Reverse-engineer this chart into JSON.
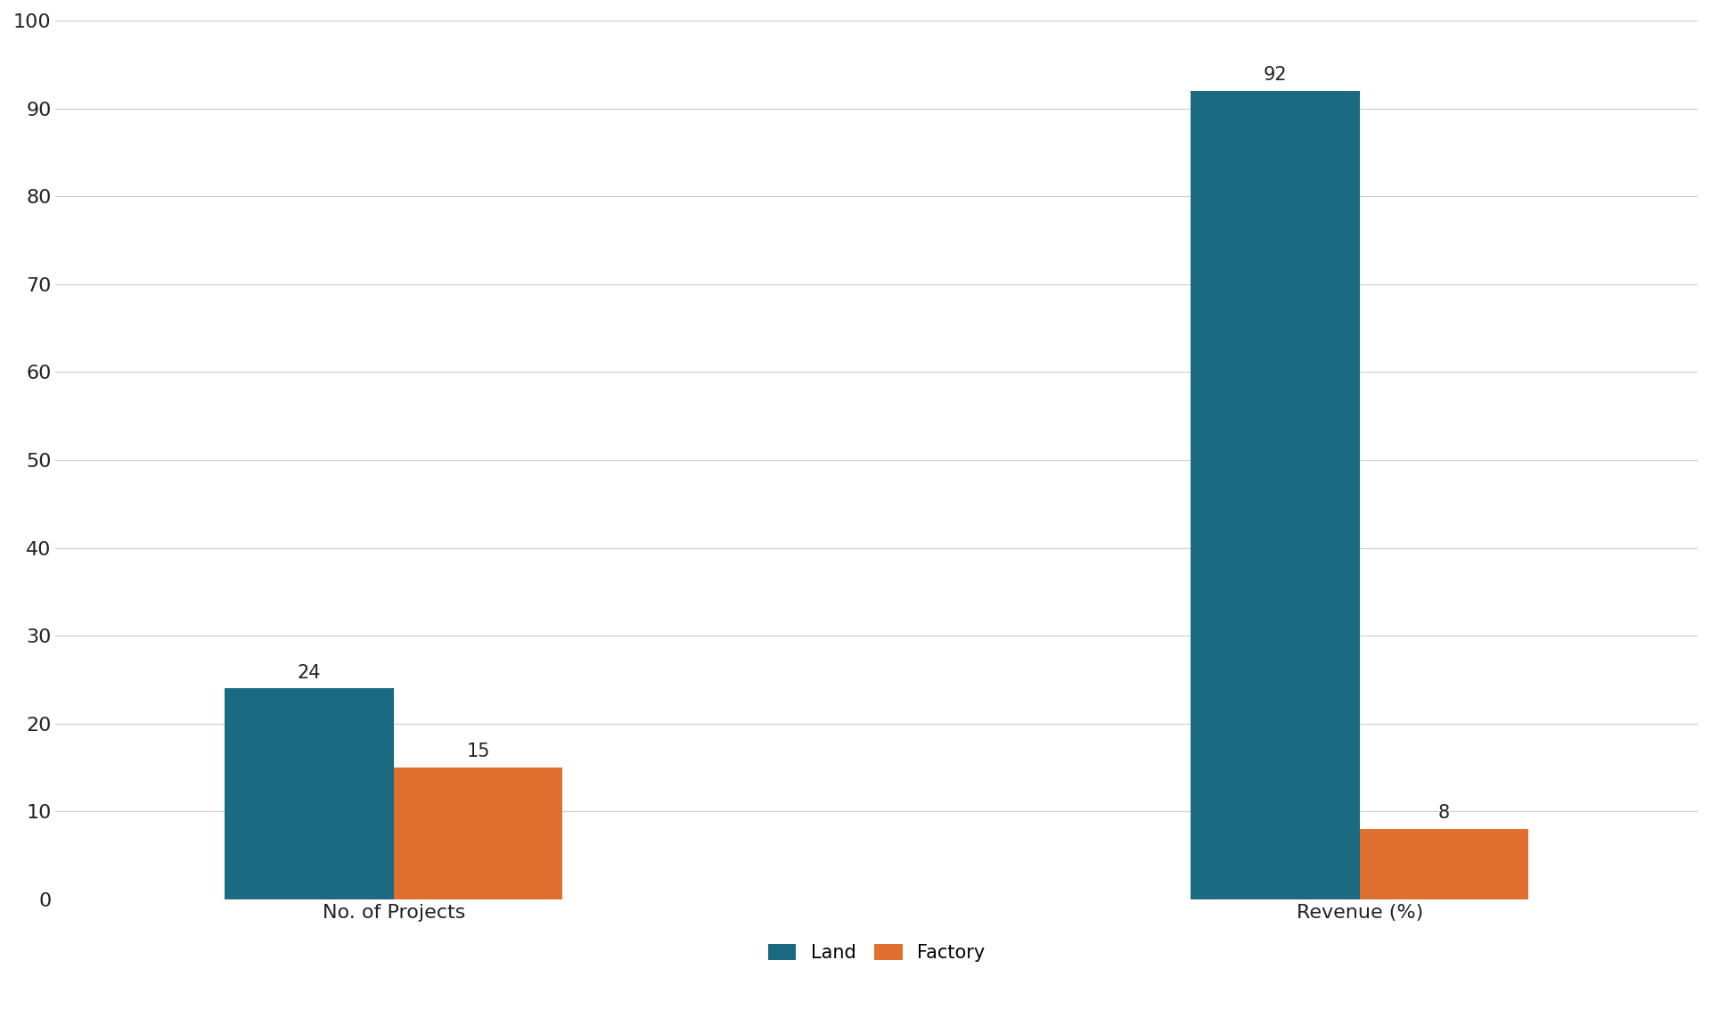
{
  "groups": [
    "No. of Projects",
    "Revenue (%)"
  ],
  "land_values": [
    24,
    92
  ],
  "factory_values": [
    15,
    8
  ],
  "land_color": "#1a6b82",
  "factory_color": "#e07030",
  "ylim": [
    0,
    100
  ],
  "yticks": [
    0,
    10,
    20,
    30,
    40,
    50,
    60,
    70,
    80,
    90,
    100
  ],
  "bar_width": 0.35,
  "legend_labels": [
    "Land",
    "Factory"
  ],
  "background_color": "#ffffff",
  "label_fontsize": 16,
  "tick_fontsize": 16,
  "value_fontsize": 15,
  "legend_fontsize": 15,
  "group_centers": [
    1,
    3
  ]
}
